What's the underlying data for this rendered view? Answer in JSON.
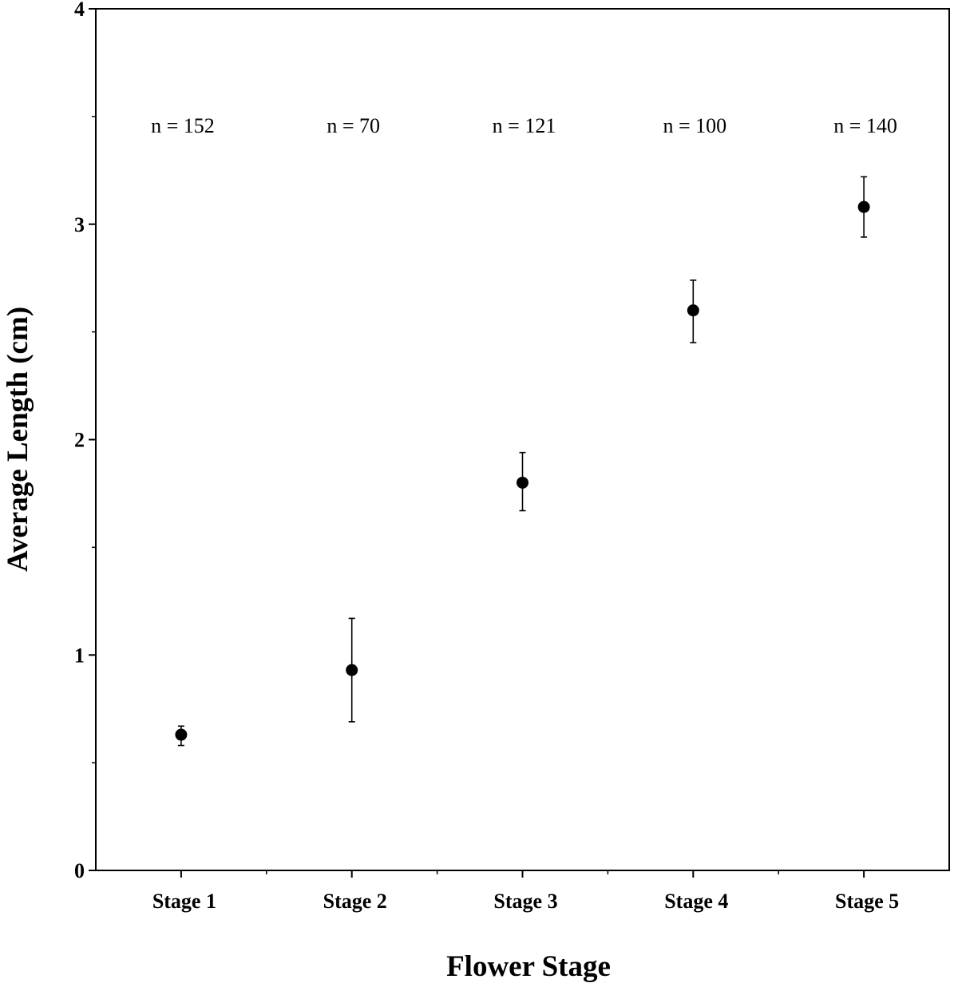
{
  "chart_data": {
    "type": "scatter",
    "title": "",
    "xlabel": "Flower Stage",
    "ylabel": "Average Length (cm)",
    "categories": [
      "Stage 1",
      "Stage 2",
      "Stage 3",
      "Stage 4",
      "Stage 5"
    ],
    "values": [
      0.63,
      0.93,
      1.8,
      2.6,
      3.08
    ],
    "error_upper": [
      0.67,
      1.17,
      1.94,
      2.74,
      3.22
    ],
    "error_lower": [
      0.58,
      0.69,
      1.67,
      2.45,
      2.94
    ],
    "n_labels": [
      "n = 152",
      "n = 70",
      "n = 121",
      "n = 100",
      "n = 140"
    ],
    "ylim": [
      0,
      4
    ],
    "y_major_ticks": [
      0,
      1,
      2,
      3,
      4
    ],
    "y_tick_labels": [
      "0",
      "1",
      "2",
      "3",
      "4"
    ],
    "y_minor_ticks": [
      0.5,
      1.5,
      2.5,
      3.5
    ],
    "grid": false,
    "marker_color": "#000000"
  }
}
